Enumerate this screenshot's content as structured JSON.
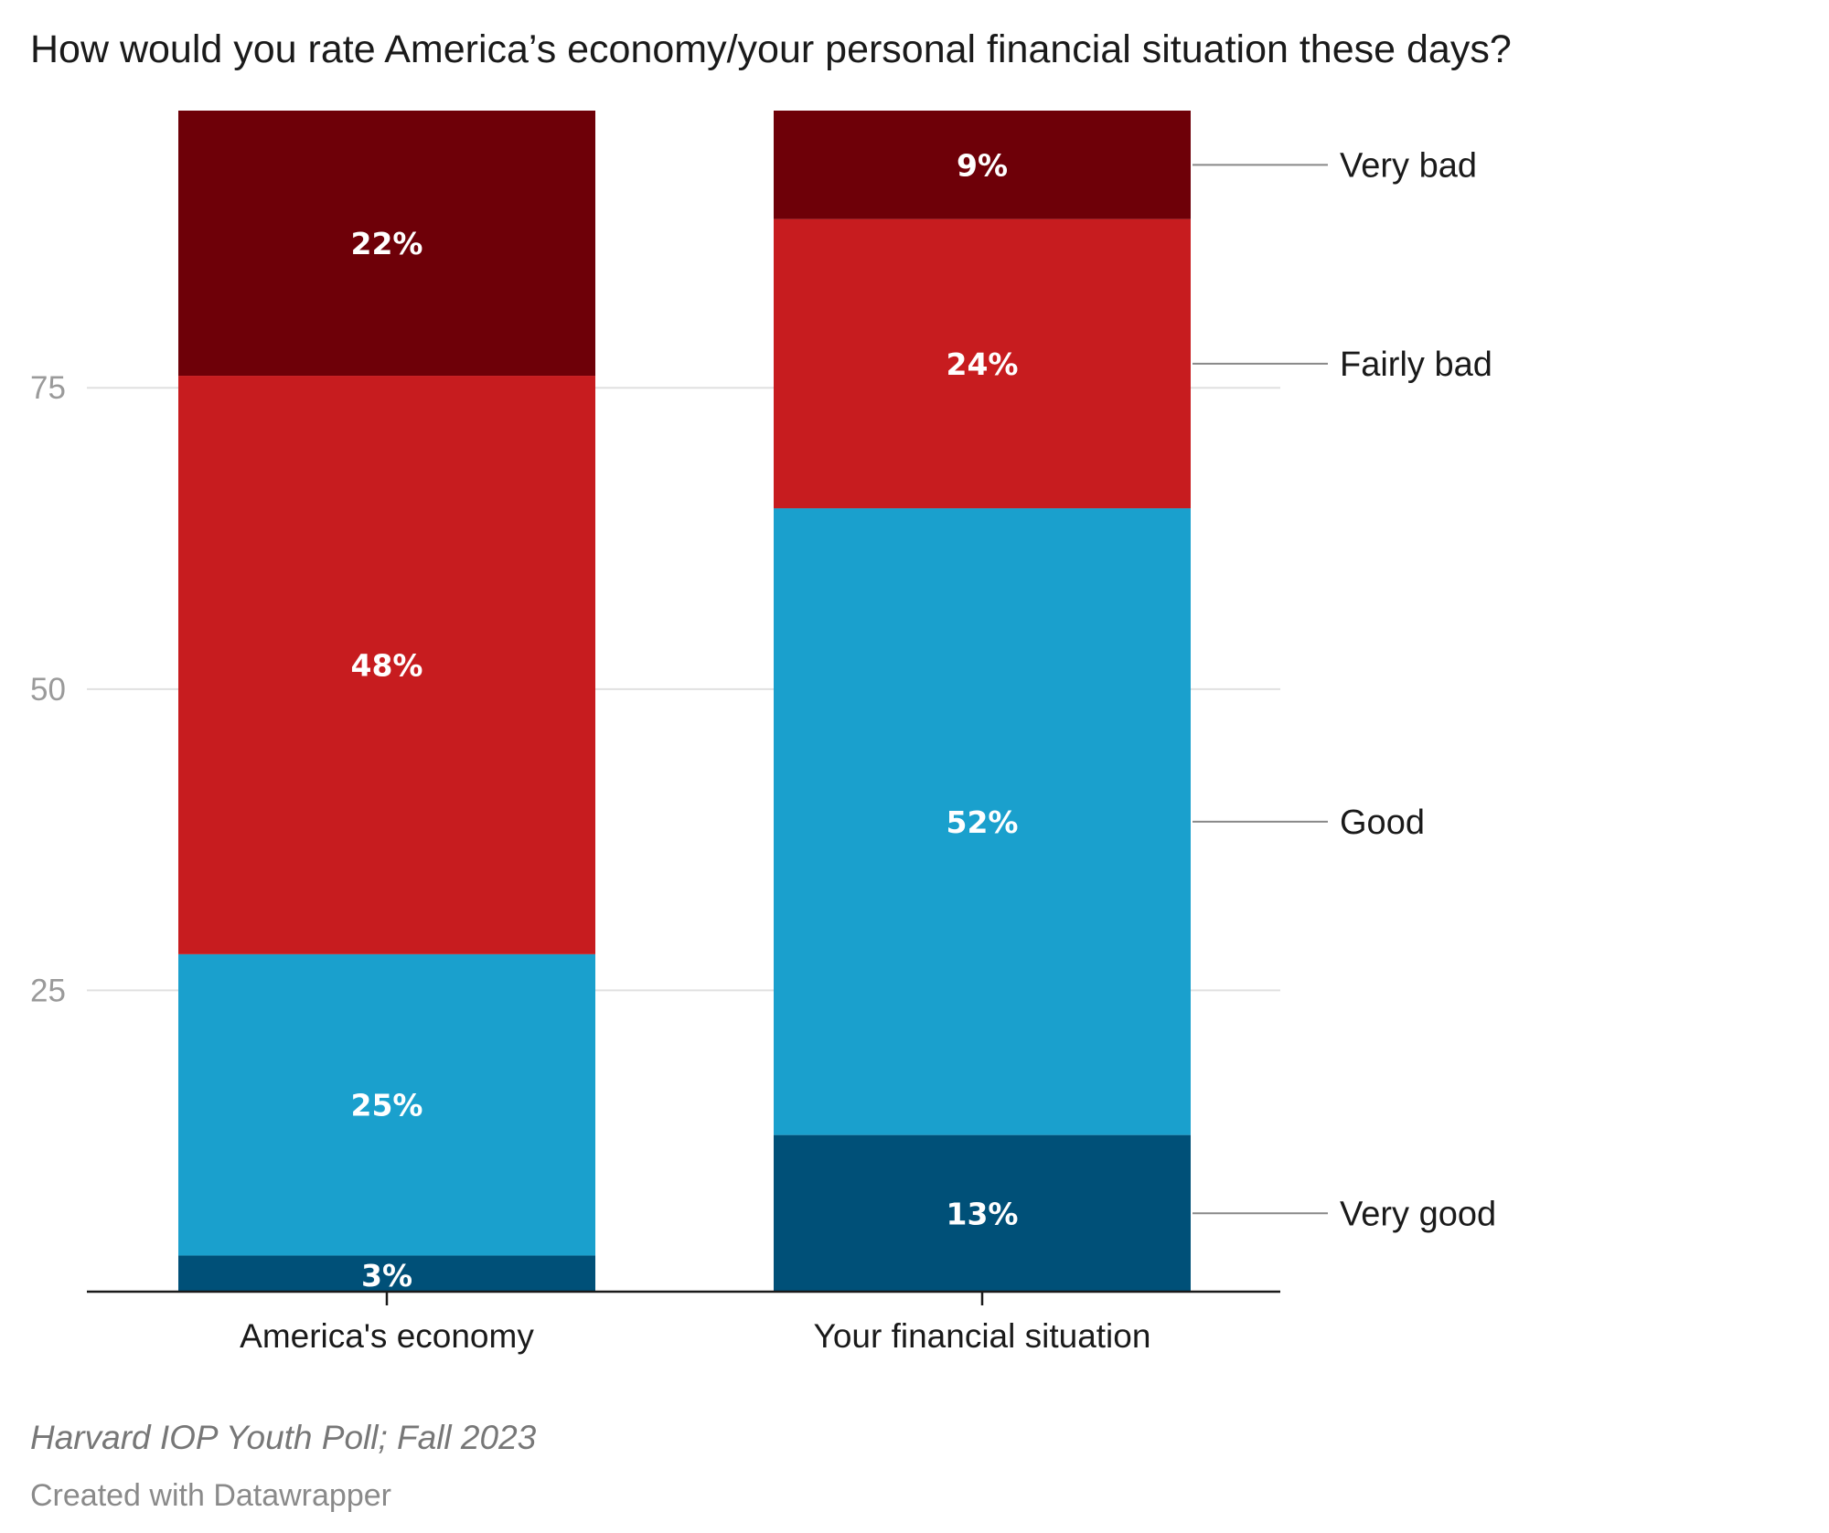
{
  "title": "How would you rate America’s economy/your personal financial situation these days?",
  "source": "Harvard IOP Youth Poll; Fall 2023",
  "credit": "Created with Datawrapper",
  "colors": {
    "very_bad": "#6e0008",
    "fairly_bad": "#c71c1f",
    "good": "#1aa0cd",
    "very_good": "#005078",
    "grid": "#e0e0e0",
    "axis": "#1a1a1a",
    "connector": "#888888"
  },
  "chart_data": {
    "type": "bar",
    "stacked": true,
    "categories": [
      "America's economy",
      "Your financial situation"
    ],
    "series": [
      {
        "name": "Very good",
        "key": "very_good",
        "values": [
          3,
          13
        ]
      },
      {
        "name": "Good",
        "key": "good",
        "values": [
          25,
          52
        ]
      },
      {
        "name": "Fairly bad",
        "key": "fairly_bad",
        "values": [
          48,
          24
        ]
      },
      {
        "name": "Very bad",
        "key": "very_bad",
        "values": [
          22,
          9
        ]
      }
    ],
    "value_labels": [
      [
        "3%",
        "13%"
      ],
      [
        "25%",
        "52%"
      ],
      [
        "48%",
        "24%"
      ],
      [
        "22%",
        "9%"
      ]
    ],
    "yticks": [
      25,
      50,
      75
    ],
    "ylim": [
      0,
      98
    ],
    "grid": true,
    "legend_placement": "right, direct labels on last bar"
  }
}
